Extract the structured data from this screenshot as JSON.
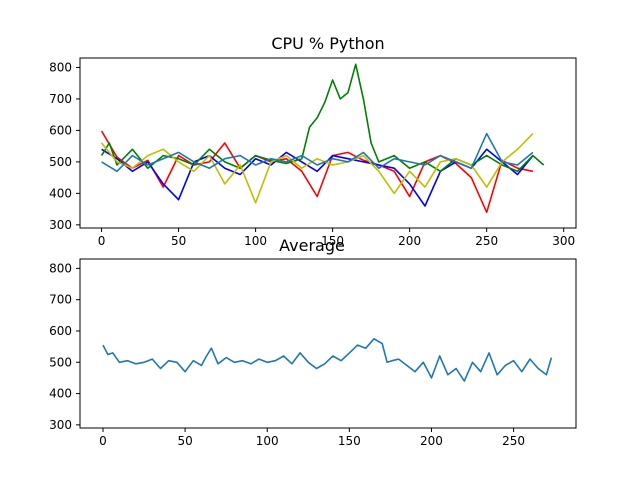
{
  "chart_data": [
    {
      "type": "line",
      "title": "CPU % Python",
      "xlabel": "",
      "ylabel": "",
      "xlim": [
        -14,
        308
      ],
      "ylim": [
        290,
        830
      ],
      "xticks": [
        0,
        50,
        100,
        150,
        200,
        250,
        300
      ],
      "yticks": [
        300,
        400,
        500,
        600,
        700,
        800
      ],
      "grid": false,
      "series": [
        {
          "color": "#ff0000",
          "x": [
            0,
            10,
            20,
            30,
            40,
            50,
            60,
            70,
            80,
            90,
            100,
            110,
            120,
            130,
            140,
            150,
            160,
            170,
            180,
            190,
            200,
            210,
            220,
            230,
            240,
            250,
            260,
            270,
            280
          ],
          "y": [
            598,
            515,
            480,
            505,
            420,
            520,
            490,
            500,
            560,
            480,
            520,
            500,
            510,
            470,
            390,
            520,
            530,
            505,
            490,
            470,
            390,
            500,
            520,
            495,
            450,
            340,
            505,
            480,
            470
          ]
        },
        {
          "color": "#0000ff",
          "x": [
            0,
            10,
            20,
            30,
            40,
            50,
            60,
            70,
            80,
            90,
            100,
            110,
            120,
            130,
            140,
            150,
            160,
            170,
            180,
            190,
            200,
            210,
            220,
            230,
            240,
            250,
            260,
            270,
            280
          ],
          "y": [
            540,
            510,
            470,
            500,
            430,
            380,
            500,
            520,
            480,
            460,
            510,
            490,
            530,
            500,
            470,
            520,
            510,
            500,
            490,
            480,
            430,
            360,
            470,
            500,
            480,
            540,
            500,
            460,
            520
          ]
        },
        {
          "color": "#008000",
          "x": [
            0,
            5,
            10,
            20,
            30,
            40,
            50,
            60,
            70,
            80,
            90,
            100,
            110,
            120,
            130,
            135,
            140,
            145,
            150,
            155,
            160,
            165,
            170,
            175,
            180,
            190,
            200,
            210,
            220,
            230,
            240,
            250,
            260,
            270,
            280,
            287
          ],
          "y": [
            520,
            560,
            490,
            540,
            480,
            520,
            510,
            490,
            540,
            500,
            480,
            520,
            505,
            495,
            510,
            610,
            640,
            690,
            760,
            700,
            720,
            810,
            700,
            560,
            500,
            520,
            480,
            500,
            470,
            510,
            490,
            520,
            490,
            470,
            520,
            490
          ]
        },
        {
          "color": "#bfbf00",
          "x": [
            0,
            10,
            20,
            30,
            40,
            50,
            60,
            70,
            80,
            90,
            100,
            110,
            120,
            130,
            140,
            150,
            160,
            170,
            180,
            190,
            200,
            210,
            220,
            230,
            240,
            250,
            260,
            270,
            280
          ],
          "y": [
            560,
            500,
            480,
            520,
            540,
            500,
            470,
            520,
            430,
            490,
            370,
            500,
            520,
            480,
            510,
            490,
            500,
            520,
            470,
            400,
            470,
            420,
            500,
            510,
            490,
            420,
            500,
            540,
            590
          ]
        },
        {
          "color": "#1f77b4",
          "x": [
            0,
            10,
            20,
            30,
            40,
            50,
            60,
            70,
            80,
            90,
            100,
            110,
            120,
            130,
            140,
            150,
            160,
            170,
            180,
            190,
            200,
            210,
            220,
            230,
            240,
            250,
            260,
            270,
            280
          ],
          "y": [
            500,
            470,
            520,
            490,
            510,
            530,
            500,
            480,
            510,
            520,
            490,
            510,
            500,
            520,
            490,
            510,
            500,
            530,
            480,
            510,
            500,
            490,
            520,
            500,
            480,
            590,
            500,
            490,
            530
          ]
        }
      ]
    },
    {
      "type": "line",
      "title": "Average",
      "xlabel": "",
      "ylabel": "",
      "xlim": [
        -14,
        288
      ],
      "ylim": [
        290,
        830
      ],
      "xticks": [
        0,
        50,
        100,
        150,
        200,
        250
      ],
      "yticks": [
        300,
        400,
        500,
        600,
        700,
        800
      ],
      "grid": false,
      "series": [
        {
          "color": "#1f77b4",
          "x": [
            0,
            3,
            6,
            10,
            15,
            20,
            25,
            30,
            35,
            40,
            45,
            50,
            55,
            60,
            63,
            66,
            70,
            75,
            80,
            85,
            90,
            95,
            100,
            105,
            110,
            115,
            120,
            125,
            130,
            135,
            140,
            145,
            150,
            155,
            160,
            165,
            170,
            173,
            176,
            180,
            185,
            190,
            195,
            200,
            205,
            210,
            215,
            220,
            225,
            230,
            235,
            240,
            245,
            250,
            255,
            260,
            265,
            270,
            273
          ],
          "y": [
            555,
            525,
            530,
            500,
            505,
            495,
            500,
            510,
            480,
            505,
            500,
            470,
            505,
            490,
            520,
            545,
            495,
            515,
            500,
            505,
            495,
            510,
            500,
            505,
            520,
            495,
            530,
            500,
            480,
            495,
            520,
            505,
            530,
            555,
            545,
            575,
            560,
            500,
            505,
            510,
            490,
            470,
            500,
            450,
            520,
            460,
            480,
            440,
            500,
            470,
            530,
            460,
            490,
            505,
            470,
            510,
            480,
            460,
            515
          ]
        }
      ]
    }
  ]
}
